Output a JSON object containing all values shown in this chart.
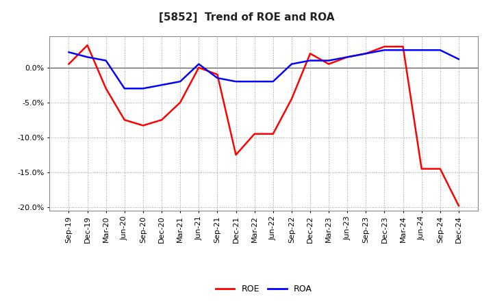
{
  "title": "[5852]  Trend of ROE and ROA",
  "x_labels": [
    "Sep-19",
    "Dec-19",
    "Mar-20",
    "Jun-20",
    "Sep-20",
    "Dec-20",
    "Mar-21",
    "Jun-21",
    "Sep-21",
    "Dec-21",
    "Mar-22",
    "Jun-22",
    "Sep-22",
    "Dec-22",
    "Mar-23",
    "Jun-23",
    "Sep-23",
    "Dec-23",
    "Mar-24",
    "Jun-24",
    "Sep-24",
    "Dec-24"
  ],
  "roe": [
    0.005,
    0.032,
    -0.03,
    -0.075,
    -0.083,
    -0.075,
    -0.05,
    0.0,
    -0.01,
    -0.125,
    -0.095,
    -0.095,
    -0.045,
    0.02,
    0.005,
    0.015,
    0.02,
    0.03,
    0.03,
    -0.145,
    -0.145,
    -0.198
  ],
  "roa": [
    0.022,
    0.015,
    0.01,
    -0.03,
    -0.03,
    -0.025,
    -0.02,
    0.005,
    -0.015,
    -0.02,
    -0.02,
    -0.02,
    0.005,
    0.01,
    0.01,
    0.015,
    0.02,
    0.025,
    0.025,
    0.025,
    0.025,
    0.012
  ],
  "roe_color": "#ff0000",
  "roa_color": "#0000ff",
  "ylim": [
    -0.205,
    0.045
  ],
  "yticks": [
    0.0,
    -0.05,
    -0.1,
    -0.15,
    -0.2
  ],
  "background_color": "#ffffff",
  "grid_color": "#999999",
  "title_fontsize": 11,
  "tick_fontsize": 8,
  "legend_fontsize": 9
}
